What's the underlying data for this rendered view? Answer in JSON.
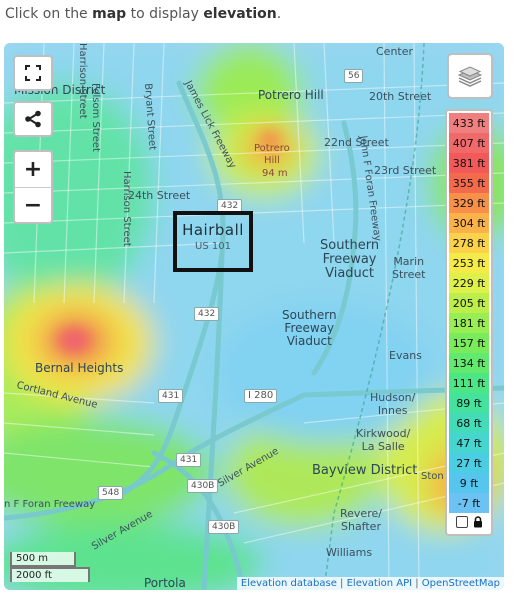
{
  "instruction": {
    "prefix": "Click on the ",
    "bold1": "map",
    "middle": " to display ",
    "bold2": "elevation",
    "suffix": "."
  },
  "map": {
    "controls": {
      "fullscreen_icon": "fullscreen-icon",
      "share_icon": "share-icon",
      "zoom_in_label": "+",
      "zoom_out_label": "−",
      "layers_icon": "layers-icon"
    },
    "legend": {
      "items": [
        {
          "label": "433 ft",
          "color": "#f08080"
        },
        {
          "label": "407 ft",
          "color": "#f06a6a"
        },
        {
          "label": "381 ft",
          "color": "#f25a5a"
        },
        {
          "label": "355 ft",
          "color": "#f46a4c"
        },
        {
          "label": "329 ft",
          "color": "#f8904a"
        },
        {
          "label": "304 ft",
          "color": "#fbb24a"
        },
        {
          "label": "278 ft",
          "color": "#fbd24a"
        },
        {
          "label": "253 ft",
          "color": "#f4ea48"
        },
        {
          "label": "229 ft",
          "color": "#def04a"
        },
        {
          "label": "205 ft",
          "color": "#bcef4c"
        },
        {
          "label": "181 ft",
          "color": "#98ee52"
        },
        {
          "label": "157 ft",
          "color": "#7aec5c"
        },
        {
          "label": "134 ft",
          "color": "#62ea6e"
        },
        {
          "label": "111 ft",
          "color": "#4de684"
        },
        {
          "label": "89 ft",
          "color": "#45e29e"
        },
        {
          "label": "68 ft",
          "color": "#44dcb8"
        },
        {
          "label": "47 ft",
          "color": "#46d6cf"
        },
        {
          "label": "27 ft",
          "color": "#4ccee2"
        },
        {
          "label": "9 ft",
          "color": "#56c6ee"
        },
        {
          "label": "-7 ft",
          "color": "#6cc2f2"
        }
      ],
      "lock_icon": "lock-icon"
    },
    "callout": {
      "title": "Hairball",
      "subtitle": "US 101"
    },
    "labels": {
      "mission_district": "Mission District",
      "potrero_hill": "Potrero Hill",
      "potrero_hill_peak": "Potrero\nHill",
      "potrero_hill_elev": "94 m",
      "twentieth_street": "20th Street",
      "twenty_second_street": "22nd Street",
      "twenty_third_street": "23rd Street",
      "twenty_fourth_street": "24th Street",
      "harrison_street": "Harrison Street",
      "folsom_street": "Folsom Street",
      "bryant_street": "Bryant Street",
      "harrison_street_2": "Harrison Street",
      "james_lick_freeway": "James Lick Freeway",
      "john_foran_freeway": "John F Foran Freeway",
      "southern_freeway_viaduct": "Southern\nFreeway\nViaduct",
      "southern_freeway_viaduct_2": "Southern\nFreeway\nViaduct",
      "marin_street": "Marin\nStreet",
      "bernal_heights": "Bernal Heights",
      "cortland_avenue": "Cortland Avenue",
      "evans": "Evans",
      "hudson_innes": "Hudson/\nInnes",
      "kirkwood_la_salle": "Kirkwood/\nLa Salle",
      "bayview_district": "Bayview District",
      "silver_avenue": "Silver Avenue",
      "silver_avenue_2": "Silver Avenue",
      "foran_freeway_left": "n F Foran Freeway",
      "revere_shafter": "Revere/\nShafter",
      "williams": "Williams",
      "portola": "Portola",
      "center": "Center",
      "ston": "Ston",
      "shield_56": "56",
      "shield_432_a": "432",
      "shield_432_b": "432",
      "shield_431_a": "431",
      "shield_431_b": "431",
      "shield_548": "548",
      "shield_430b": "430B",
      "shield_430b_2": "430B",
      "shield_i280": "I 280"
    },
    "scale": {
      "metric": "500 m",
      "imperial": "2000 ft"
    },
    "attribution": {
      "link1": "Elevation database",
      "sep": " | ",
      "link2": "Elevation API",
      "link3": "OpenStreetMap"
    }
  }
}
